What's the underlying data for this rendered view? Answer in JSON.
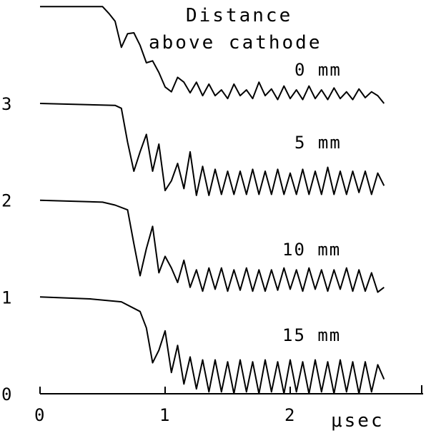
{
  "chart_data": {
    "type": "line",
    "title_lines": [
      "Distance",
      "above cathode"
    ],
    "xlabel": "μsec",
    "ylabel": "",
    "xlim": [
      0,
      3.0
    ],
    "ylim": [
      0,
      4.0
    ],
    "x_ticks": [
      0,
      1,
      2
    ],
    "x_tick_labels": [
      "0",
      "1",
      "2"
    ],
    "y_ticks": [
      0,
      1,
      2,
      3
    ],
    "y_tick_labels": [
      "0",
      "1",
      "2",
      "3"
    ],
    "grid": false,
    "legend": "none",
    "line_color": "#000000",
    "series": [
      {
        "name": "0 mm",
        "baseline": 4.0,
        "x": [
          0.0,
          0.5,
          0.55,
          0.6,
          0.65,
          0.7,
          0.75,
          0.8,
          0.85,
          0.9,
          0.95,
          1.0,
          1.05,
          1.1,
          1.15,
          1.2,
          1.25,
          1.3,
          1.35,
          1.4,
          1.45,
          1.5,
          1.55,
          1.6,
          1.65,
          1.7,
          1.75,
          1.8,
          1.85,
          1.9,
          1.95,
          2.0,
          2.05,
          2.1,
          2.15,
          2.2,
          2.25,
          2.3,
          2.35,
          2.4,
          2.45,
          2.5,
          2.55,
          2.6,
          2.65,
          2.7,
          2.75
        ],
        "y": [
          4.0,
          4.0,
          3.93,
          3.85,
          3.58,
          3.72,
          3.73,
          3.6,
          3.42,
          3.44,
          3.32,
          3.17,
          3.12,
          3.27,
          3.22,
          3.11,
          3.22,
          3.08,
          3.2,
          3.08,
          3.14,
          3.05,
          3.2,
          3.08,
          3.14,
          3.05,
          3.22,
          3.08,
          3.15,
          3.04,
          3.18,
          3.05,
          3.14,
          3.04,
          3.18,
          3.05,
          3.14,
          3.04,
          3.16,
          3.05,
          3.12,
          3.04,
          3.15,
          3.06,
          3.12,
          3.08,
          3.0
        ]
      },
      {
        "name": "5 mm",
        "baseline": 3.0,
        "x": [
          0.0,
          0.6,
          0.65,
          0.7,
          0.75,
          0.8,
          0.85,
          0.9,
          0.95,
          1.0,
          1.05,
          1.1,
          1.15,
          1.2,
          1.25,
          1.3,
          1.35,
          1.4,
          1.45,
          1.5,
          1.55,
          1.6,
          1.65,
          1.7,
          1.75,
          1.8,
          1.85,
          1.9,
          1.95,
          2.0,
          2.05,
          2.1,
          2.15,
          2.2,
          2.25,
          2.3,
          2.35,
          2.4,
          2.45,
          2.5,
          2.55,
          2.6,
          2.65,
          2.7,
          2.75
        ],
        "y": [
          3.0,
          2.98,
          2.95,
          2.6,
          2.3,
          2.5,
          2.68,
          2.3,
          2.58,
          2.1,
          2.2,
          2.38,
          2.12,
          2.5,
          2.05,
          2.35,
          2.05,
          2.32,
          2.06,
          2.3,
          2.06,
          2.3,
          2.06,
          2.32,
          2.06,
          2.3,
          2.06,
          2.32,
          2.06,
          2.28,
          2.06,
          2.32,
          2.06,
          2.3,
          2.06,
          2.34,
          2.06,
          2.3,
          2.06,
          2.3,
          2.08,
          2.3,
          2.06,
          2.28,
          2.15
        ]
      },
      {
        "name": "10 mm",
        "baseline": 2.0,
        "x": [
          0.0,
          0.5,
          0.6,
          0.7,
          0.75,
          0.8,
          0.85,
          0.9,
          0.95,
          1.0,
          1.05,
          1.1,
          1.15,
          1.2,
          1.25,
          1.3,
          1.35,
          1.4,
          1.45,
          1.5,
          1.55,
          1.6,
          1.65,
          1.7,
          1.75,
          1.8,
          1.85,
          1.9,
          1.95,
          2.0,
          2.05,
          2.1,
          2.15,
          2.2,
          2.25,
          2.3,
          2.35,
          2.4,
          2.45,
          2.5,
          2.55,
          2.6,
          2.65,
          2.7,
          2.75
        ],
        "y": [
          2.0,
          1.98,
          1.95,
          1.9,
          1.55,
          1.22,
          1.5,
          1.73,
          1.25,
          1.42,
          1.3,
          1.15,
          1.38,
          1.1,
          1.28,
          1.06,
          1.3,
          1.08,
          1.3,
          1.06,
          1.28,
          1.07,
          1.3,
          1.06,
          1.28,
          1.06,
          1.28,
          1.07,
          1.3,
          1.08,
          1.28,
          1.06,
          1.3,
          1.08,
          1.28,
          1.06,
          1.28,
          1.08,
          1.3,
          1.06,
          1.28,
          1.06,
          1.25,
          1.05,
          1.1
        ]
      },
      {
        "name": "15 mm",
        "baseline": 1.0,
        "x": [
          0.0,
          0.4,
          0.65,
          0.8,
          0.85,
          0.9,
          0.95,
          1.0,
          1.05,
          1.1,
          1.15,
          1.2,
          1.25,
          1.3,
          1.35,
          1.4,
          1.45,
          1.5,
          1.55,
          1.6,
          1.65,
          1.7,
          1.75,
          1.8,
          1.85,
          1.9,
          1.95,
          2.0,
          2.05,
          2.1,
          2.15,
          2.2,
          2.25,
          2.3,
          2.35,
          2.4,
          2.45,
          2.5,
          2.55,
          2.6,
          2.65,
          2.7,
          2.75
        ],
        "y": [
          1.0,
          0.98,
          0.95,
          0.85,
          0.68,
          0.32,
          0.45,
          0.65,
          0.22,
          0.5,
          0.1,
          0.38,
          0.05,
          0.35,
          0.02,
          0.35,
          0.02,
          0.33,
          0.0,
          0.35,
          0.02,
          0.33,
          0.0,
          0.35,
          0.02,
          0.33,
          0.0,
          0.35,
          0.02,
          0.33,
          0.0,
          0.35,
          0.02,
          0.33,
          0.0,
          0.35,
          0.02,
          0.33,
          0.0,
          0.33,
          0.02,
          0.3,
          0.15
        ]
      }
    ]
  }
}
